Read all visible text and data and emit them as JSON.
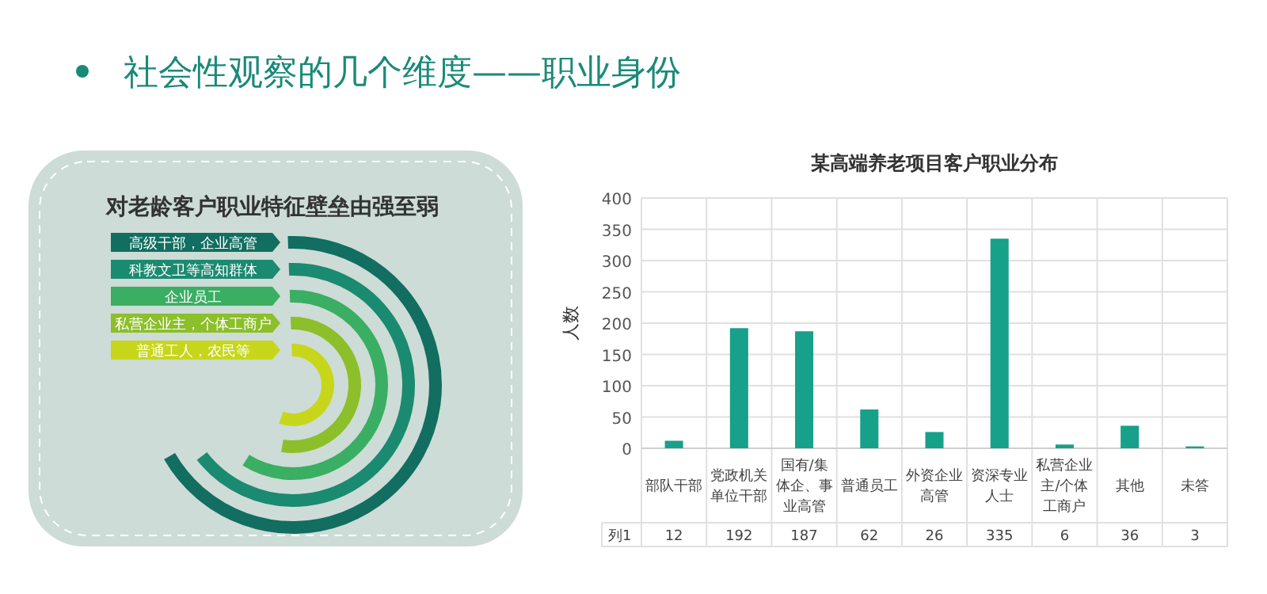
{
  "chart_data": [
    {
      "type": "other",
      "title": "社会性观察的几个维度——职业身份",
      "subtitle": "对老龄客户职业特征壁垒由强至弱",
      "annotations": [
        "高级干部，企业高管",
        "科教文卫等高知群体",
        "企业员工",
        "私营企业主，个体工商户",
        "普通工人，农民等"
      ]
    },
    {
      "type": "bar",
      "title": "某高端养老项目客户职业分布",
      "ylabel": "人数",
      "categories": [
        "部队干部",
        "党政机关单位干部",
        "国有/集体企、事业高管",
        "普通员工",
        "外资企业高管",
        "资深专业人士",
        "私营企业主/个体工商户",
        "其他",
        "未答"
      ],
      "series": [
        {
          "name": "列1",
          "color": "#17a08a",
          "values": [
            12,
            192,
            187,
            62,
            26,
            335,
            6,
            36,
            3
          ]
        }
      ],
      "ylim": [
        0,
        400
      ],
      "yticks": [
        0,
        50,
        100,
        150,
        200,
        250,
        300,
        350,
        400
      ],
      "grid": "y",
      "data_labels": true
    }
  ]
}
